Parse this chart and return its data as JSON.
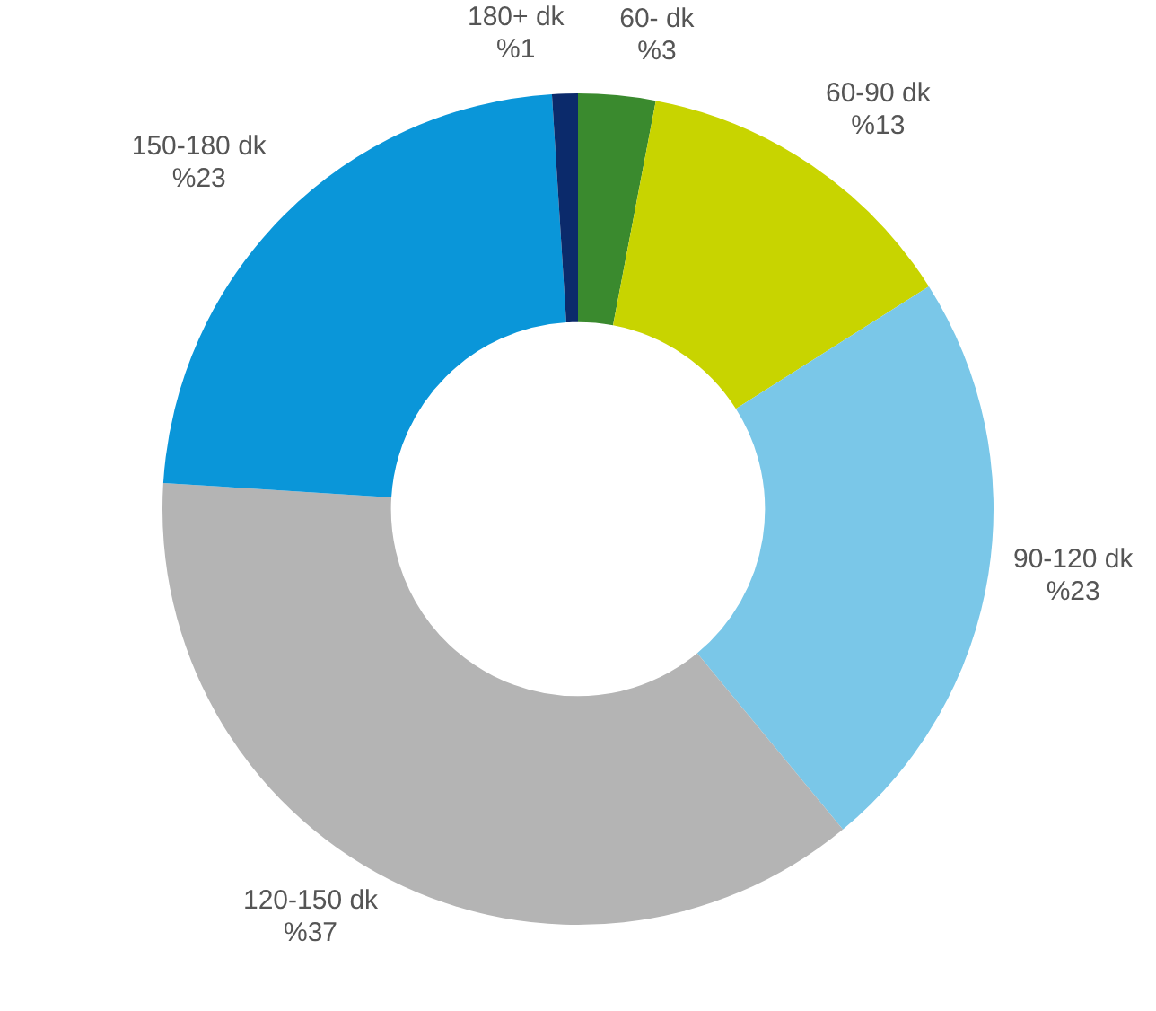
{
  "chart_data": {
    "type": "donut",
    "categories": [
      "60- dk",
      "60-90 dk",
      "90-120 dk",
      "120-150 dk",
      "150-180 dk",
      "180+ dk"
    ],
    "values": [
      3,
      13,
      23,
      37,
      23,
      1
    ],
    "colors": [
      "#3a8a2e",
      "#c8d400",
      "#7ac7e8",
      "#b4b4b4",
      "#0a96d9",
      "#0b2a6b"
    ],
    "value_labels": [
      "%3",
      "%13",
      "%23",
      "%37",
      "%23",
      "%1"
    ],
    "legend": false
  }
}
